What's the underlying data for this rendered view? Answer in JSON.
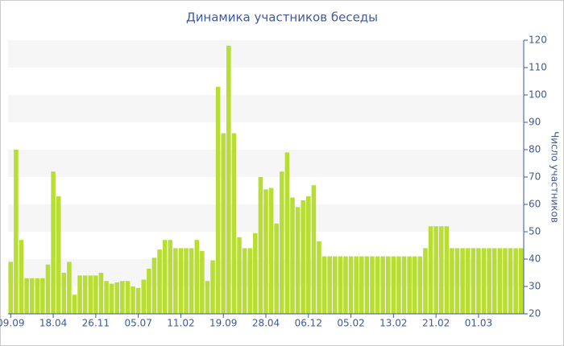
{
  "chart_data": {
    "type": "bar",
    "title": "Динамика участников беседы",
    "y_axis_label": "Число участников",
    "color": "#b8dd34",
    "categories": [
      "09.09",
      null,
      null,
      null,
      null,
      null,
      null,
      null,
      "18.04",
      null,
      null,
      null,
      null,
      null,
      null,
      null,
      "26.11",
      null,
      null,
      null,
      null,
      null,
      null,
      null,
      "05.07",
      null,
      null,
      null,
      null,
      null,
      null,
      null,
      "11.02",
      null,
      null,
      null,
      null,
      null,
      null,
      null,
      "19.09",
      null,
      null,
      null,
      null,
      null,
      null,
      null,
      "28.04",
      null,
      null,
      null,
      null,
      null,
      null,
      null,
      "06.12",
      null,
      null,
      null,
      null,
      null,
      null,
      null,
      "05.02",
      null,
      null,
      null,
      null,
      null,
      null,
      null,
      "13.02",
      null,
      null,
      null,
      null,
      null,
      null,
      null,
      "21.02",
      null,
      null,
      null,
      null,
      null,
      null,
      null,
      "01.03",
      null,
      null,
      null,
      null,
      null,
      null,
      null,
      null
    ],
    "values": [
      39,
      80,
      47,
      33,
      33,
      33,
      33,
      38,
      72,
      63,
      35,
      39,
      27,
      34,
      34,
      34,
      34,
      35,
      32,
      31,
      31.5,
      32,
      32,
      30,
      29.5,
      32.5,
      36.5,
      40.5,
      43.5,
      47,
      47,
      44,
      44,
      44,
      44,
      47,
      43,
      32,
      39.5,
      103,
      86,
      118,
      86,
      48,
      44,
      44,
      49.5,
      70,
      65.5,
      66,
      53,
      72,
      79,
      62.5,
      59,
      61.5,
      63,
      67,
      46.5,
      41,
      41,
      41,
      41,
      41,
      41,
      41,
      41,
      41,
      41,
      41,
      41,
      41,
      41,
      41,
      41,
      41,
      41,
      41,
      44,
      52,
      52,
      52,
      52,
      44,
      44,
      44,
      44,
      44,
      44,
      44,
      44,
      44,
      44,
      44,
      44,
      44,
      44
    ],
    "ylim": [
      20,
      120
    ],
    "yticks": [
      20,
      30,
      40,
      50,
      60,
      70,
      80,
      90,
      100,
      110,
      120
    ],
    "grid": "bands",
    "y_axis_side": "right"
  }
}
